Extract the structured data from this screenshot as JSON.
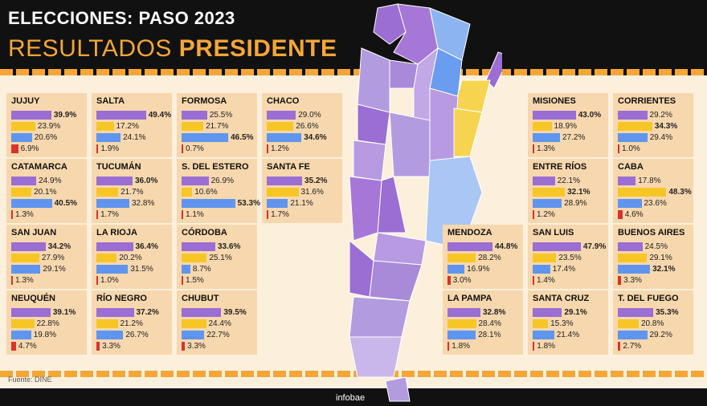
{
  "header": {
    "title": "ELECCIONES: PASO 2023",
    "subtitle_plain": "RESULTADOS ",
    "subtitle_bold": "PRESIDENTE"
  },
  "footer": {
    "source": "Fuente: DINE",
    "brand": "infobae"
  },
  "colors": {
    "purple": "#9a6ed2",
    "yellow": "#f6c627",
    "blue": "#5f95ee",
    "red": "#d8332c"
  },
  "chart_data": {
    "type": "bar",
    "series_colors": [
      "purple",
      "yellow",
      "blue",
      "red"
    ],
    "provinces": [
      {
        "name": "JUJUY",
        "values": [
          "39.9%",
          "23.9%",
          "20.6%",
          "6.9%"
        ],
        "winner": 0
      },
      {
        "name": "SALTA",
        "values": [
          "49.4%",
          "17.2%",
          "24.1%",
          "1.9%"
        ],
        "winner": 0
      },
      {
        "name": "FORMOSA",
        "values": [
          "25.5%",
          "21.7%",
          "46.5%",
          "0.7%"
        ],
        "winner": 2
      },
      {
        "name": "CHACO",
        "values": [
          "29.0%",
          "26.6%",
          "34.6%",
          "1.2%"
        ],
        "winner": 2
      },
      {
        "name": "CATAMARCA",
        "values": [
          "24.9%",
          "20.1%",
          "40.5%",
          "1.3%"
        ],
        "winner": 2
      },
      {
        "name": "TUCUMÁN",
        "values": [
          "36.0%",
          "21.7%",
          "32.8%",
          "1.7%"
        ],
        "winner": 0
      },
      {
        "name": "S. DEL ESTERO",
        "values": [
          "26.9%",
          "10.6%",
          "53.3%",
          "1.1%"
        ],
        "winner": 2
      },
      {
        "name": "SANTA FE",
        "values": [
          "35.2%",
          "31.6%",
          "21.1%",
          "1.7%"
        ],
        "winner": 0
      },
      {
        "name": "SAN JUAN",
        "values": [
          "34.2%",
          "27.9%",
          "29.1%",
          "1.3%"
        ],
        "winner": 0
      },
      {
        "name": "LA RIOJA",
        "values": [
          "36.4%",
          "20.2%",
          "31.5%",
          "1.0%"
        ],
        "winner": 0
      },
      {
        "name": "CÓRDOBA",
        "values": [
          "33.6%",
          "25.1%",
          "8.7%",
          "1.5%"
        ],
        "winner": 0
      },
      {
        "name": "NEUQUÉN",
        "values": [
          "39.1%",
          "22.8%",
          "19.8%",
          "4.7%"
        ],
        "winner": 0
      },
      {
        "name": "RÍO NEGRO",
        "values": [
          "37.2%",
          "21.2%",
          "26.7%",
          "3.3%"
        ],
        "winner": 0
      },
      {
        "name": "CHUBUT",
        "values": [
          "39.5%",
          "24.4%",
          "22.7%",
          "3.3%"
        ],
        "winner": 0
      },
      {
        "name": "MISIONES",
        "values": [
          "43.0%",
          "18.9%",
          "27.2%",
          "1.3%"
        ],
        "winner": 0
      },
      {
        "name": "CORRIENTES",
        "values": [
          "29.2%",
          "34.3%",
          "29.4%",
          "1.0%"
        ],
        "winner": 1
      },
      {
        "name": "ENTRE RÍOS",
        "values": [
          "22.1%",
          "32.1%",
          "28.9%",
          "1.2%"
        ],
        "winner": 1
      },
      {
        "name": "CABA",
        "values": [
          "17.8%",
          "48.3%",
          "23.6%",
          "4.6%"
        ],
        "winner": 1
      },
      {
        "name": "MENDOZA",
        "values": [
          "44.8%",
          "28.2%",
          "16.9%",
          "3.0%"
        ],
        "winner": 0
      },
      {
        "name": "SAN LUIS",
        "values": [
          "47.9%",
          "23.5%",
          "17.4%",
          "1.4%"
        ],
        "winner": 0
      },
      {
        "name": "BUENOS AIRES",
        "values": [
          "24.5%",
          "29.1%",
          "32.1%",
          "3.3%"
        ],
        "winner": 2
      },
      {
        "name": "LA PAMPA",
        "values": [
          "32.8%",
          "28.4%",
          "28.1%",
          "1.8%"
        ],
        "winner": 0
      },
      {
        "name": "SANTA CRUZ",
        "values": [
          "29.1%",
          "15.3%",
          "21.4%",
          "1.8%"
        ],
        "winner": 0
      },
      {
        "name": "T. DEL FUEGO",
        "values": [
          "35.3%",
          "20.8%",
          "29.2%",
          "2.7%"
        ],
        "winner": 0
      }
    ]
  }
}
